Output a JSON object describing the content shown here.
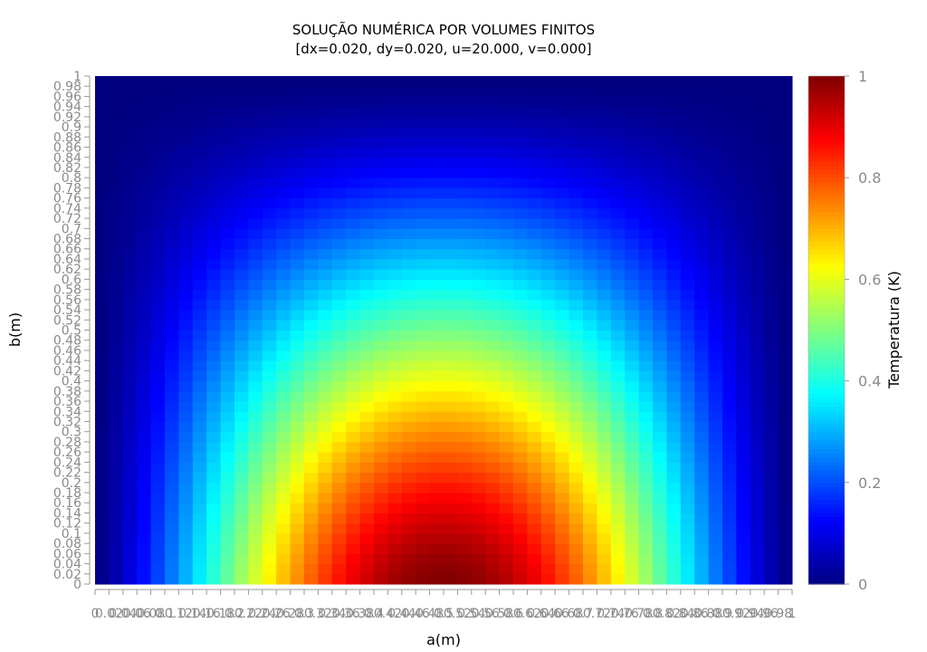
{
  "chart_data": {
    "type": "heatmap",
    "title": "SOLUÇÃO NUMÉRICA POR VOLUMES FINITOS",
    "subtitle": "[dx=0.020, dy=0.020, u=20.000, v=0.000]",
    "xlabel": "a(m)",
    "ylabel": "b(m)",
    "colorbar_label": "Temperatura (K)",
    "xlim": [
      0,
      1
    ],
    "ylim": [
      0,
      1
    ],
    "zlim": [
      0,
      1
    ],
    "colormap": "jet",
    "nx": 50,
    "ny": 50,
    "dx": 0.02,
    "dy": 0.02,
    "x_tick_labels": [
      "0",
      "0.02",
      "0.04",
      "0.06",
      "0.08",
      "0.1",
      "0.12",
      "0.14",
      "0.16",
      "0.18",
      "0.2",
      "0.22",
      "0.24",
      "0.26",
      "0.28",
      "0.3",
      "0.32",
      "0.34",
      "0.36",
      "0.38",
      "0.4",
      "0.42",
      "0.44",
      "0.46",
      "0.48",
      "0.5",
      "0.52",
      "0.54",
      "0.56",
      "0.58",
      "0.6",
      "0.62",
      "0.64",
      "0.66",
      "0.68",
      "0.7",
      "0.72",
      "0.74",
      "0.76",
      "0.78",
      "0.8",
      "0.82",
      "0.84",
      "0.86",
      "0.88",
      "0.9",
      "0.92",
      "0.94",
      "0.96",
      "0.98",
      "1"
    ],
    "y_tick_labels": [
      "0",
      "0.02",
      "0.04",
      "0.06",
      "0.08",
      "0.1",
      "0.12",
      "0.14",
      "0.16",
      "0.18",
      "0.2",
      "0.22",
      "0.24",
      "0.26",
      "0.28",
      "0.3",
      "0.32",
      "0.34",
      "0.36",
      "0.38",
      "0.4",
      "0.42",
      "0.44",
      "0.46",
      "0.48",
      "0.5",
      "0.52",
      "0.54",
      "0.56",
      "0.58",
      "0.6",
      "0.62",
      "0.64",
      "0.66",
      "0.68",
      "0.7",
      "0.72",
      "0.74",
      "0.76",
      "0.78",
      "0.8",
      "0.82",
      "0.84",
      "0.86",
      "0.88",
      "0.9",
      "0.92",
      "0.94",
      "0.96",
      "0.98",
      "1"
    ],
    "colorbar_tick_labels": [
      "0",
      "0.2",
      "0.4",
      "0.6",
      "0.8",
      "1"
    ],
    "field_model": "T(a,b) ≈ sin(pi*a)^1.3 * (1 - b^1.4)^1.5, peak ≈ 1.0 at a≈0.5, b≈0"
  }
}
